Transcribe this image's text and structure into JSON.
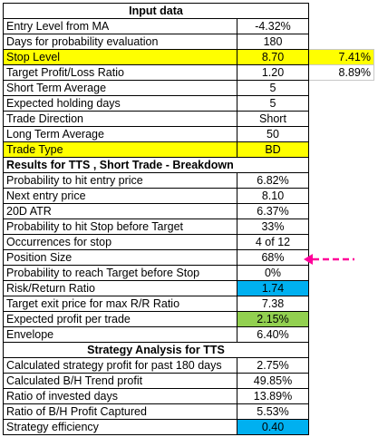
{
  "input_data": {
    "header": "Input data",
    "rows": [
      {
        "label": "Entry Level from MA",
        "value": "-4.32%",
        "extra": ""
      },
      {
        "label": "Days for probability evaluation",
        "value": "180",
        "extra": ""
      },
      {
        "label": "Stop Level",
        "value": "8.70",
        "extra": "7.41%"
      },
      {
        "label": "Target Profit/Loss Ratio",
        "value": "1.20",
        "extra": "8.89%"
      },
      {
        "label": "Short Term Average",
        "value": "5",
        "extra": ""
      },
      {
        "label": "Expected holding days",
        "value": "5",
        "extra": ""
      },
      {
        "label": "Trade Direction",
        "value": "Short",
        "extra": ""
      },
      {
        "label": "Long Term Average",
        "value": "50",
        "extra": ""
      },
      {
        "label": "Trade Type",
        "value": "BD",
        "extra": ""
      }
    ]
  },
  "results": {
    "header": "Results for TTS , Short Trade - Breakdown",
    "rows": [
      {
        "label": "Probability to hit entry price",
        "value": "6.82%"
      },
      {
        "label": "Next entry price",
        "value": "8.10"
      },
      {
        "label": "20D ATR",
        "value": "6.37%"
      },
      {
        "label": "Probability to hit Stop before Target",
        "value": "33%"
      },
      {
        "label": "Occurrences for stop",
        "value": "4 of 12"
      },
      {
        "label": "Position Size",
        "value": "68%"
      },
      {
        "label": "Probability to reach Target before Stop",
        "value": "0%"
      },
      {
        "label": "Risk/Return Ratio",
        "value": "1.74"
      },
      {
        "label": "Target exit price for max R/R Ratio",
        "value": "7.38"
      },
      {
        "label": "Expected profit per trade",
        "value": "2.15%"
      },
      {
        "label": "Envelope",
        "value": "6.40%"
      }
    ]
  },
  "strategy": {
    "header": "Strategy Analysis for TTS",
    "rows": [
      {
        "label": "Calculated strategy profit for past 180 days",
        "value": "2.75%"
      },
      {
        "label": "Calculated B/H Trend profit",
        "value": "49.85%"
      },
      {
        "label": "Ratio of invested days",
        "value": "13.89%"
      },
      {
        "label": "Ratio of B/H Profit Captured",
        "value": "5.53%"
      },
      {
        "label": "Strategy efficiency",
        "value": "0.40"
      }
    ]
  },
  "colors": {
    "highlight_yellow": "#ffff00",
    "highlight_blue": "#00b0f0",
    "highlight_green": "#92d050",
    "arrow_magenta": "#ff0099"
  },
  "annotation": {
    "icon": "dashed-arrow-left-icon"
  }
}
